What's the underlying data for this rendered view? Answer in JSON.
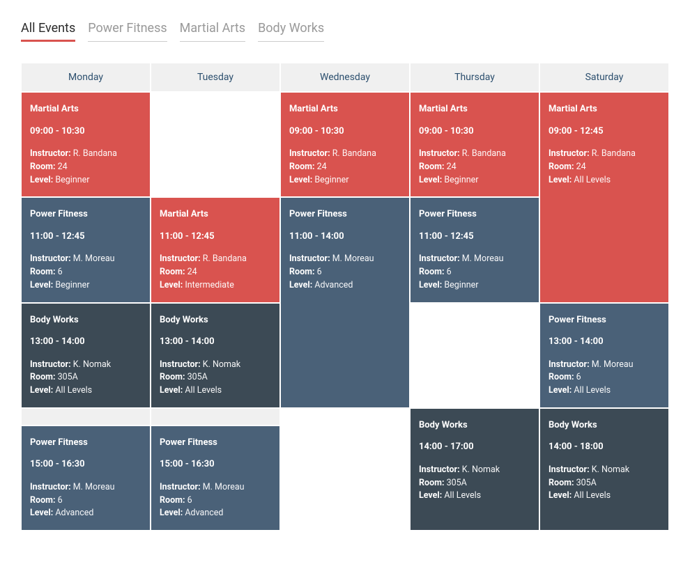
{
  "tabs": [
    {
      "label": "All Events",
      "active": true
    },
    {
      "label": "Power Fitness",
      "active": false
    },
    {
      "label": "Martial Arts",
      "active": false
    },
    {
      "label": "Body Works",
      "active": false
    }
  ],
  "days": [
    "Monday",
    "Tuesday",
    "Wednesday",
    "Thursday",
    "Saturday"
  ],
  "labels": {
    "instructor": "Instructor:",
    "room": "Room:",
    "level": "Level:"
  },
  "colors": {
    "martial_arts": "#d9534f",
    "power_fitness": "#4a6178",
    "body_works": "#3c4a55",
    "header_bg": "#f0f0f0",
    "header_text": "#2c4f6e",
    "tab_active_underline": "#d9534f",
    "tab_inactive_text": "#999999",
    "tab_active_text": "#2b2b2b",
    "page_bg": "#ffffff"
  },
  "grid": [
    [
      {
        "type": "martial",
        "title": "Martial Arts",
        "time": "09:00 - 10:30",
        "instructor": "R. Bandana",
        "room": "24",
        "level": "Beginner"
      },
      {
        "type": "empty"
      },
      {
        "type": "martial",
        "title": "Martial Arts",
        "time": "09:00 - 10:30",
        "instructor": "R. Bandana",
        "room": "24",
        "level": "Beginner"
      },
      {
        "type": "martial",
        "title": "Martial Arts",
        "time": "09:00 - 10:30",
        "instructor": "R. Bandana",
        "room": "24",
        "level": "Beginner"
      },
      {
        "type": "martial",
        "title": "Martial Arts",
        "time": "09:00 - 12:45",
        "instructor": "R. Bandana",
        "room": "24",
        "level": "All Levels",
        "rowspan": 2
      }
    ],
    [
      {
        "type": "power",
        "title": "Power Fitness",
        "time": "11:00 - 12:45",
        "instructor": "M. Moreau",
        "room": "6",
        "level": "Beginner"
      },
      {
        "type": "martial",
        "title": "Martial Arts",
        "time": "11:00 - 12:45",
        "instructor": "R. Bandana",
        "room": "24",
        "level": "Intermediate"
      },
      {
        "type": "power",
        "title": "Power Fitness",
        "time": "11:00 - 14:00",
        "instructor": "M. Moreau",
        "room": "6",
        "level": "Advanced",
        "rowspan": 2
      },
      {
        "type": "power",
        "title": "Power Fitness",
        "time": "11:00 - 12:45",
        "instructor": "M. Moreau",
        "room": "6",
        "level": "Beginner"
      },
      {
        "type": "spanned"
      }
    ],
    [
      {
        "type": "body",
        "title": "Body Works",
        "time": "13:00 - 14:00",
        "instructor": "K. Nomak",
        "room": "305A",
        "level": "All Levels"
      },
      {
        "type": "body",
        "title": "Body Works",
        "time": "13:00 - 14:00",
        "instructor": "K. Nomak",
        "room": "305A",
        "level": "All Levels"
      },
      {
        "type": "spanned"
      },
      {
        "type": "empty"
      },
      {
        "type": "power",
        "title": "Power Fitness",
        "time": "13:00 - 14:00",
        "instructor": "M. Moreau",
        "room": "6",
        "level": "All Levels"
      }
    ],
    [
      {
        "type": "gap"
      },
      {
        "type": "gap"
      },
      {
        "type": "empty-tall"
      },
      {
        "type": "body",
        "title": "Body Works",
        "time": "14:00 - 17:00",
        "instructor": "K. Nomak",
        "room": "305A",
        "level": "All Levels",
        "rowspan": 2
      },
      {
        "type": "body",
        "title": "Body Works",
        "time": "14:00 - 18:00",
        "instructor": "K. Nomak",
        "room": "305A",
        "level": "All Levels",
        "rowspan": 2
      }
    ],
    [
      {
        "type": "power",
        "title": "Power Fitness",
        "time": "15:00 - 16:30",
        "instructor": "M. Moreau",
        "room": "6",
        "level": "Advanced"
      },
      {
        "type": "power",
        "title": "Power Fitness",
        "time": "15:00 - 16:30",
        "instructor": "M. Moreau",
        "room": "6",
        "level": "Advanced"
      },
      {
        "type": "spanned"
      },
      {
        "type": "spanned"
      },
      {
        "type": "spanned"
      }
    ]
  ]
}
